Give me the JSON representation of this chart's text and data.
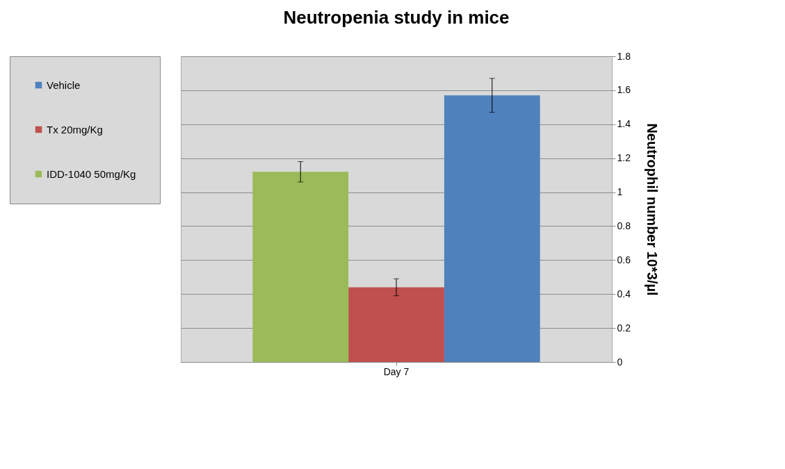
{
  "chart_data": {
    "type": "bar",
    "title": "Neutropenia study in mice",
    "ylabel": "Neutrophil  number  10*3/µl",
    "categories": [
      "Day 7"
    ],
    "series": [
      {
        "name": "Vehicle",
        "color": "#4f81bd",
        "values": [
          1.57
        ],
        "errors": [
          0.1
        ]
      },
      {
        "name": "Tx 20mg/Kg",
        "color": "#c0504d",
        "values": [
          0.44
        ],
        "errors": [
          0.05
        ]
      },
      {
        "name": "IDD-1040 50mg/Kg",
        "color": "#9bbb59",
        "values": [
          1.12
        ],
        "errors": [
          0.06
        ]
      }
    ],
    "ylim": [
      0,
      1.8
    ],
    "yticks": [
      0,
      0.2,
      0.4,
      0.6,
      0.8,
      1,
      1.2,
      1.4,
      1.6,
      1.8
    ],
    "grid": "y",
    "legend": "left"
  }
}
